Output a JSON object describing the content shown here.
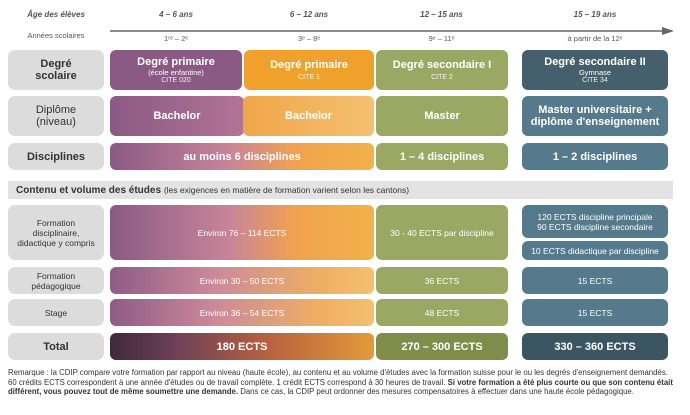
{
  "header": {
    "age_label": "Âge des élèves",
    "years_label": "Années scolaires",
    "ages": [
      "4 – 6 ans",
      "6 – 12 ans",
      "12 – 15 ans",
      "15 – 19 ans"
    ],
    "years": [
      "1ʳᵉ – 2ᵉ",
      "3ᵉ – 8ᵉ",
      "9ᵉ – 11ᵉ",
      "à partir de la 12ᵉ"
    ]
  },
  "rows": {
    "degree_label": "Degré scolaire",
    "diploma_label": "Diplôme (niveau)",
    "disciplines_label": "Disciplines"
  },
  "degrees": [
    {
      "title": "Degré primaire",
      "sub": "(école enfantine)",
      "cite": "CITE 020"
    },
    {
      "title": "Degré primaire",
      "sub": "",
      "cite": "CITE 1"
    },
    {
      "title": "Degré secondaire I",
      "sub": "",
      "cite": "CITE 2"
    },
    {
      "title": "Degré secondaire II",
      "sub": "Gymnase",
      "cite": "CITE 34"
    }
  ],
  "diplomas": [
    "Bachelor",
    "Bachelor",
    "Master",
    "Master universitaire + diplôme d'enseignement"
  ],
  "disciplines": [
    "au moins 6 disciplines",
    "1 – 4 disciplines",
    "1 – 2 disciplines"
  ],
  "section": {
    "title": "Contenu et volume des études",
    "subtitle": "(les exigences en matière de formation varient selon les cantons)"
  },
  "content_rows": {
    "formation_label": "Formation disciplinaire, didactique y compris",
    "pedagogique_label": "Formation pédagogique",
    "stage_label": "Stage",
    "total_label": "Total"
  },
  "formation": {
    "primary": "Environ 76 – 114 ECTS",
    "sec1": "30 - 40 ECTS par discipline",
    "sec2_main": "120 ECTS discipline principale",
    "sec2_second": "90 ECTS discipline secondaire",
    "sec2_did": "10 ECTS didactique par discipline"
  },
  "pedagogique": {
    "primary": "Environ 30 – 50 ECTS",
    "sec1": "36 ECTS",
    "sec2": "15 ECTS"
  },
  "stage": {
    "primary": "Environ 36 – 54 ECTS",
    "sec1": "48 ECTS",
    "sec2": "15 ECTS"
  },
  "total": {
    "primary": "180 ECTS",
    "sec1": "270 – 300 ECTS",
    "sec2": "330 – 360 ECTS"
  },
  "note": {
    "part1": "Remarque : la CDIP compare votre formation par rapport au niveau (haute école), au contenu et au volume d'études avec la formation suisse pour le ou les degrés d'enseignement demandés. 60 crédits ECTS correspondent à une année d'études ou de travail complète. 1 crédit ECTS correspond à 30 heures de travail.",
    "bold": "Si votre formation a été plus courte ou que son contenu était différent, vous pouvez tout de même soumettre une demande.",
    "part2": "Dans ce cas, la CDIP peut ordonner des mesures compensatoires à effectuer dans une haute école pédagogique."
  },
  "colors": {
    "purple": "#8a5a84",
    "orange": "#f0a12c",
    "green": "#9aa864",
    "blue": "#547a8c",
    "label_bg": "#dcdcdc"
  }
}
